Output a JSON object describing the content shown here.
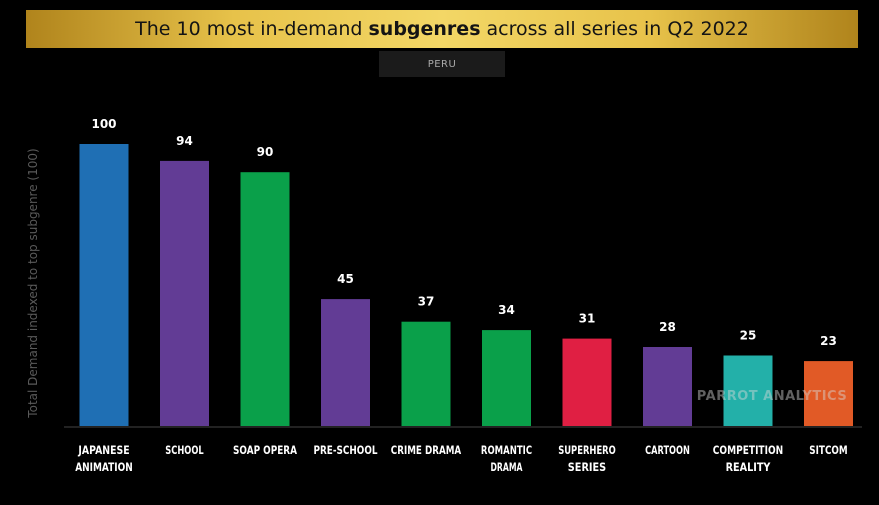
{
  "header": {
    "title_pre": "The 10 most in-demand ",
    "title_bold": "subgenres",
    "title_post": " across all series in Q2 2022",
    "region": "PERU"
  },
  "watermark": "PARROT ANALYTICS",
  "chart_data": {
    "type": "bar",
    "title": "The 10 most in-demand subgenres across all series in Q2 2022",
    "ylabel": "Total Demand indexed to top subgenre (100)",
    "xlabel": "",
    "ylim": [
      0,
      100
    ],
    "categories": [
      [
        "JAPANESE",
        "ANIMATION"
      ],
      [
        "SCHOOL"
      ],
      [
        "SOAP OPERA"
      ],
      [
        "PRE-SCHOOL"
      ],
      [
        "CRIME DRAMA"
      ],
      [
        "ROMANTIC",
        "DRAMA"
      ],
      [
        "SUPERHERO",
        "SERIES"
      ],
      [
        "CARTOON"
      ],
      [
        "COMPETITION",
        "REALITY"
      ],
      [
        "SITCOM"
      ]
    ],
    "values": [
      100,
      94,
      90,
      45,
      37,
      34,
      31,
      28,
      25,
      23
    ],
    "colors": [
      "#1f6fb4",
      "#623c95",
      "#0aa04a",
      "#623c95",
      "#0aa04a",
      "#0aa04a",
      "#e01f43",
      "#623c95",
      "#23b0a9",
      "#e15a26"
    ]
  }
}
